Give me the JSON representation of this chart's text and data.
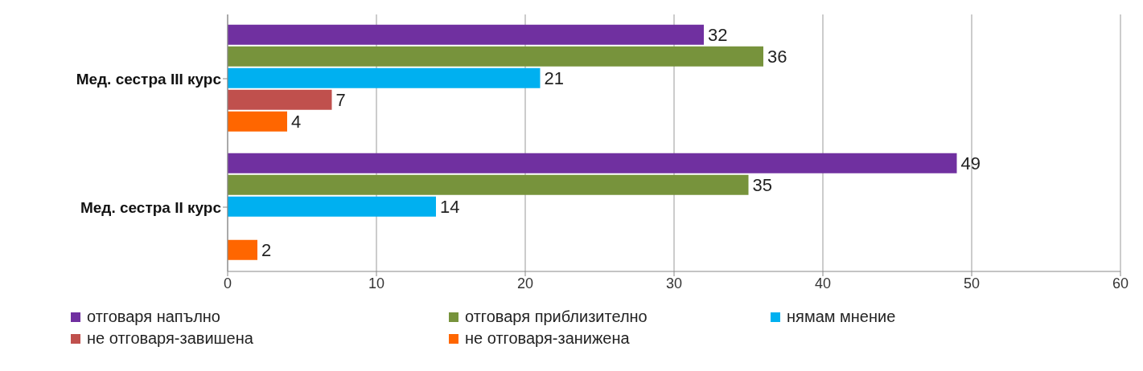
{
  "chart_data": {
    "type": "bar",
    "orientation": "horizontal",
    "categories": [
      "Мед. сестра III курс",
      "Мед. сестра II курс"
    ],
    "series": [
      {
        "name": "отговаря напълно",
        "color": "#7030a0",
        "values": [
          32,
          49
        ]
      },
      {
        "name": "отговаря приблизително",
        "color": "#77933c",
        "values": [
          36,
          35
        ]
      },
      {
        "name": "нямам мнение",
        "color": "#00b0f0",
        "values": [
          21,
          14
        ]
      },
      {
        "name": "не отговаря-завишена",
        "color": "#c0504d",
        "values": [
          7,
          null
        ]
      },
      {
        "name": "не отговаря-занижена",
        "color": "#ff6600",
        "values": [
          4,
          2
        ]
      }
    ],
    "xlim": [
      0,
      60
    ],
    "xticks": [
      0,
      10,
      20,
      30,
      40,
      50,
      60
    ],
    "grid": "x",
    "data_labels": true,
    "legend": "bottom"
  }
}
